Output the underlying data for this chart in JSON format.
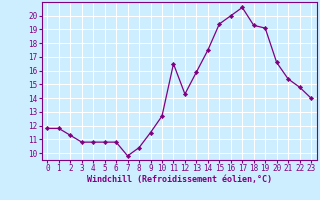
{
  "x": [
    0,
    1,
    2,
    3,
    4,
    5,
    6,
    7,
    8,
    9,
    10,
    11,
    12,
    13,
    14,
    15,
    16,
    17,
    18,
    19,
    20,
    21,
    22,
    23
  ],
  "y": [
    11.8,
    11.8,
    11.3,
    10.8,
    10.8,
    10.8,
    10.8,
    9.8,
    10.4,
    11.5,
    12.7,
    16.5,
    14.3,
    15.9,
    17.5,
    19.4,
    20.0,
    20.6,
    19.3,
    19.1,
    16.6,
    15.4,
    14.8,
    14.0
  ],
  "line_color": "#800080",
  "marker": "D",
  "marker_size": 2.2,
  "bg_color": "#cceeff",
  "grid_color": "#ffffff",
  "xlabel": "Windchill (Refroidissement éolien,°C)",
  "xlabel_color": "#800080",
  "tick_color": "#800080",
  "ylim": [
    9.5,
    21.0
  ],
  "xlim": [
    -0.5,
    23.5
  ],
  "yticks": [
    10,
    11,
    12,
    13,
    14,
    15,
    16,
    17,
    18,
    19,
    20
  ],
  "xticks": [
    0,
    1,
    2,
    3,
    4,
    5,
    6,
    7,
    8,
    9,
    10,
    11,
    12,
    13,
    14,
    15,
    16,
    17,
    18,
    19,
    20,
    21,
    22,
    23
  ],
  "spine_color": "#800080",
  "axis_fontsize": 6.0,
  "tick_fontsize": 5.5
}
